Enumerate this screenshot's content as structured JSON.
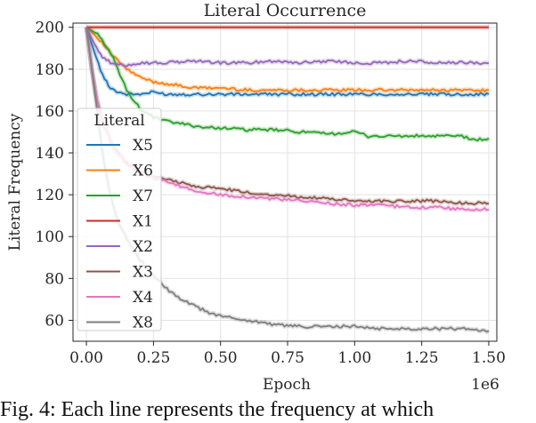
{
  "caption": "Fig. 4: Each line represents the frequency at which",
  "chart_data": {
    "type": "line",
    "title": "Literal Occurrence",
    "xlabel": "Epoch",
    "ylabel": "Literal Frequency",
    "x_offset_label": "1e6",
    "xlim": [
      0,
      1.5
    ],
    "ylim": [
      50,
      202
    ],
    "x_ticks": [
      "0.00",
      "0.25",
      "0.50",
      "0.75",
      "1.00",
      "1.25",
      "1.50"
    ],
    "y_ticks": [
      "60",
      "80",
      "100",
      "120",
      "140",
      "160",
      "180",
      "200"
    ],
    "grid": true,
    "legend_title": "Literal",
    "legend_placement": "center-left",
    "series": [
      {
        "name": "X5",
        "color": "#1f77b4",
        "x": [
          0,
          0.03,
          0.06,
          0.09,
          0.12,
          0.15,
          0.2,
          0.25,
          0.3,
          0.4,
          0.5,
          0.6,
          0.7,
          0.8,
          0.9,
          1.0,
          1.1,
          1.2,
          1.3,
          1.4,
          1.5
        ],
        "values": [
          200,
          188,
          177,
          171,
          169,
          168,
          168,
          169,
          168,
          168,
          168,
          168,
          168,
          168,
          168,
          168,
          168,
          168,
          168,
          168,
          168
        ]
      },
      {
        "name": "X6",
        "color": "#ff7f0e",
        "x": [
          0,
          0.05,
          0.1,
          0.15,
          0.2,
          0.25,
          0.3,
          0.35,
          0.4,
          0.5,
          0.6,
          0.7,
          0.8,
          0.9,
          1.0,
          1.1,
          1.2,
          1.3,
          1.4,
          1.5
        ],
        "values": [
          200,
          194,
          186,
          180,
          176,
          174,
          173,
          172,
          171,
          171,
          170,
          170,
          170,
          170,
          170,
          170,
          170,
          170,
          170,
          170
        ]
      },
      {
        "name": "X7",
        "color": "#2ca02c",
        "x": [
          0,
          0.05,
          0.1,
          0.15,
          0.2,
          0.25,
          0.3,
          0.35,
          0.4,
          0.45,
          0.5,
          0.6,
          0.7,
          0.8,
          0.9,
          1.0,
          1.05,
          1.1,
          1.2,
          1.3,
          1.4,
          1.45,
          1.5
        ],
        "values": [
          200,
          196,
          185,
          170,
          161,
          157,
          155,
          154,
          153,
          152,
          152,
          151,
          151,
          150,
          149,
          150,
          148,
          148,
          148,
          148,
          148,
          146,
          147
        ]
      },
      {
        "name": "X1",
        "color": "#d62728",
        "x": [
          0,
          1.5
        ],
        "values": [
          200,
          200
        ]
      },
      {
        "name": "X2",
        "color": "#9467bd",
        "x": [
          0,
          0.03,
          0.06,
          0.09,
          0.12,
          0.15,
          0.2,
          0.3,
          0.4,
          0.5,
          0.6,
          0.7,
          0.8,
          0.9,
          1.0,
          1.1,
          1.2,
          1.3,
          1.4,
          1.5
        ],
        "values": [
          200,
          192,
          186,
          183,
          182,
          182,
          183,
          183,
          184,
          183,
          183,
          184,
          183,
          184,
          183,
          183,
          184,
          183,
          183,
          183
        ]
      },
      {
        "name": "X3",
        "color": "#8c564b",
        "x": [
          0,
          0.02,
          0.04,
          0.06,
          0.1,
          0.15,
          0.2,
          0.25,
          0.3,
          0.35,
          0.4,
          0.5,
          0.6,
          0.7,
          0.8,
          0.9,
          1.0,
          1.1,
          1.2,
          1.3,
          1.4,
          1.5
        ],
        "values": [
          200,
          180,
          165,
          155,
          143,
          135,
          131,
          129,
          127,
          126,
          124,
          123,
          121,
          120,
          119,
          118,
          117,
          117,
          117,
          117,
          116,
          116
        ]
      },
      {
        "name": "X4",
        "color": "#e377c2",
        "x": [
          0,
          0.02,
          0.04,
          0.06,
          0.1,
          0.15,
          0.2,
          0.25,
          0.3,
          0.35,
          0.4,
          0.5,
          0.6,
          0.7,
          0.8,
          0.9,
          1.0,
          1.1,
          1.2,
          1.3,
          1.4,
          1.5
        ],
        "values": [
          200,
          180,
          165,
          155,
          143,
          135,
          131,
          128,
          126,
          124,
          122,
          120,
          119,
          118,
          117,
          116,
          115,
          115,
          114,
          114,
          113,
          113
        ]
      },
      {
        "name": "X8",
        "color": "#7f7f7f",
        "x": [
          0,
          0.02,
          0.04,
          0.06,
          0.08,
          0.1,
          0.12,
          0.15,
          0.2,
          0.25,
          0.3,
          0.35,
          0.4,
          0.45,
          0.5,
          0.55,
          0.6,
          0.65,
          0.7,
          0.8,
          0.9,
          1.0,
          1.1,
          1.2,
          1.3,
          1.4,
          1.5
        ],
        "values": [
          200,
          180,
          160,
          140,
          125,
          115,
          107,
          99,
          89,
          81,
          75,
          70,
          67,
          64,
          62,
          61,
          60,
          59,
          58,
          57,
          57,
          57,
          56,
          56,
          56,
          56,
          55
        ]
      }
    ]
  }
}
